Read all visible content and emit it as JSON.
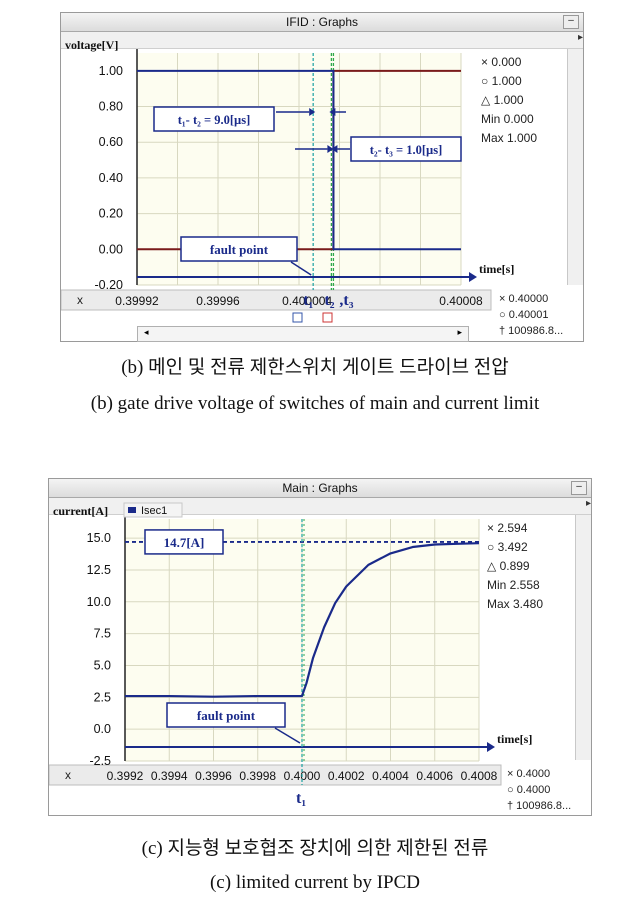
{
  "chart_data": [
    {
      "type": "line",
      "window_title": "IFID : Graphs",
      "ylabel": "voltage[V]",
      "xlabel": "time[s]",
      "ylim": [
        -0.2,
        1.1
      ],
      "xlim": [
        0.39992,
        0.40008
      ],
      "yticks": [
        "1.00",
        "0.80",
        "0.60",
        "0.40",
        "0.20",
        "0.00",
        "-0.20"
      ],
      "ytick_values": [
        1.0,
        0.8,
        0.6,
        0.4,
        0.2,
        0.0,
        -0.2
      ],
      "xticks": [
        "0.39992",
        "0.39996",
        "0.400004",
        "0.40008"
      ],
      "xtick_values": [
        0.39992,
        0.39996,
        0.400004,
        0.40008
      ],
      "x_axis_symbol": "x",
      "grid": true,
      "series": [
        {
          "color": "#7a1b1b",
          "x": [
            0.39992,
            0.400016,
            0.400017,
            0.40008
          ],
          "values": [
            0.0,
            0.0,
            1.0,
            1.0
          ]
        },
        {
          "color": "#1a2a8a",
          "x": [
            0.39992,
            0.400016,
            0.400017,
            0.40008
          ],
          "values": [
            1.0,
            1.0,
            0.0,
            0.0
          ]
        }
      ],
      "markers": [
        {
          "label": "t₁",
          "x": 0.400007,
          "color": "#2aa7a7"
        },
        {
          "label": "t₂",
          "x": 0.400016,
          "color": "#2fa84a"
        },
        {
          "label": ",t₃",
          "x": 0.400017,
          "color": "#2fa84a"
        }
      ],
      "annotations": [
        "t₁- t₂ = 9.0[µs]",
        "t₂- t₃ = 1.0[µs]",
        "fault point"
      ],
      "readouts": [
        "× 0.000",
        "○ 1.000",
        "△ 1.000",
        "Min 0.000",
        "Max 1.000"
      ],
      "x_readouts": [
        "× 0.40000",
        "○ 0.40001",
        "† 100986.8..."
      ]
    },
    {
      "type": "line",
      "window_title": "Main : Graphs",
      "legend": "Isec1",
      "ylabel": "current[A]",
      "xlabel": "time[s]",
      "ylim": [
        -2.5,
        16.5
      ],
      "xlim": [
        0.3992,
        0.4008
      ],
      "yticks": [
        "15.0",
        "12.5",
        "10.0",
        "7.5",
        "5.0",
        "2.5",
        "0.0",
        "-2.5"
      ],
      "ytick_values": [
        15.0,
        12.5,
        10.0,
        7.5,
        5.0,
        2.5,
        0.0,
        -2.5
      ],
      "xticks": [
        "0.3992",
        "0.3994",
        "0.3996",
        "0.3998",
        "0.4000",
        "0.4002",
        "0.4004",
        "0.4006",
        "0.4008"
      ],
      "xtick_values": [
        0.3992,
        0.3994,
        0.3996,
        0.3998,
        0.4,
        0.4002,
        0.4004,
        0.4006,
        0.4008
      ],
      "x_axis_symbol": "x",
      "grid": true,
      "series": [
        {
          "name": "Isec1",
          "color": "#1a2a8a",
          "x": [
            0.3992,
            0.3994,
            0.3996,
            0.3998,
            0.4,
            0.40002,
            0.40005,
            0.4001,
            0.40015,
            0.4002,
            0.4003,
            0.4004,
            0.4005,
            0.4006,
            0.4007,
            0.4008
          ],
          "values": [
            2.6,
            2.6,
            2.55,
            2.6,
            2.6,
            3.6,
            5.6,
            8.0,
            9.9,
            11.2,
            12.9,
            13.8,
            14.3,
            14.5,
            14.55,
            14.6
          ]
        }
      ],
      "reference_line": {
        "label": "14.7[A]",
        "value": 14.7
      },
      "markers": [
        {
          "label": "t₁",
          "x": 0.4,
          "color": "#2aa7a7"
        }
      ],
      "annotations": [
        "fault point"
      ],
      "readouts": [
        "× 2.594",
        "○ 3.492",
        "△ 0.899",
        "Min 2.558",
        "Max 3.480"
      ],
      "x_readouts": [
        "× 0.4000",
        "○ 0.4000",
        "† 100986.8..."
      ]
    }
  ],
  "captions": {
    "b_korean": "(b) 메인 및 전류 제한스위치 게이트 드라이브 전압",
    "b_english": "(b) gate drive voltage of switches of main and current limit",
    "c_korean": "(c) 지능형 보호협조 장치에 의한 제한된 전류",
    "c_english": "(c) limited current by IPCD"
  },
  "icons": [
    "minimize-icon",
    "pin-icon",
    "scroll-left-icon",
    "scroll-right-icon",
    "scroll-up-icon",
    "scroll-down-icon",
    "zoom-fit-icon",
    "zoom-cursor-icon"
  ]
}
